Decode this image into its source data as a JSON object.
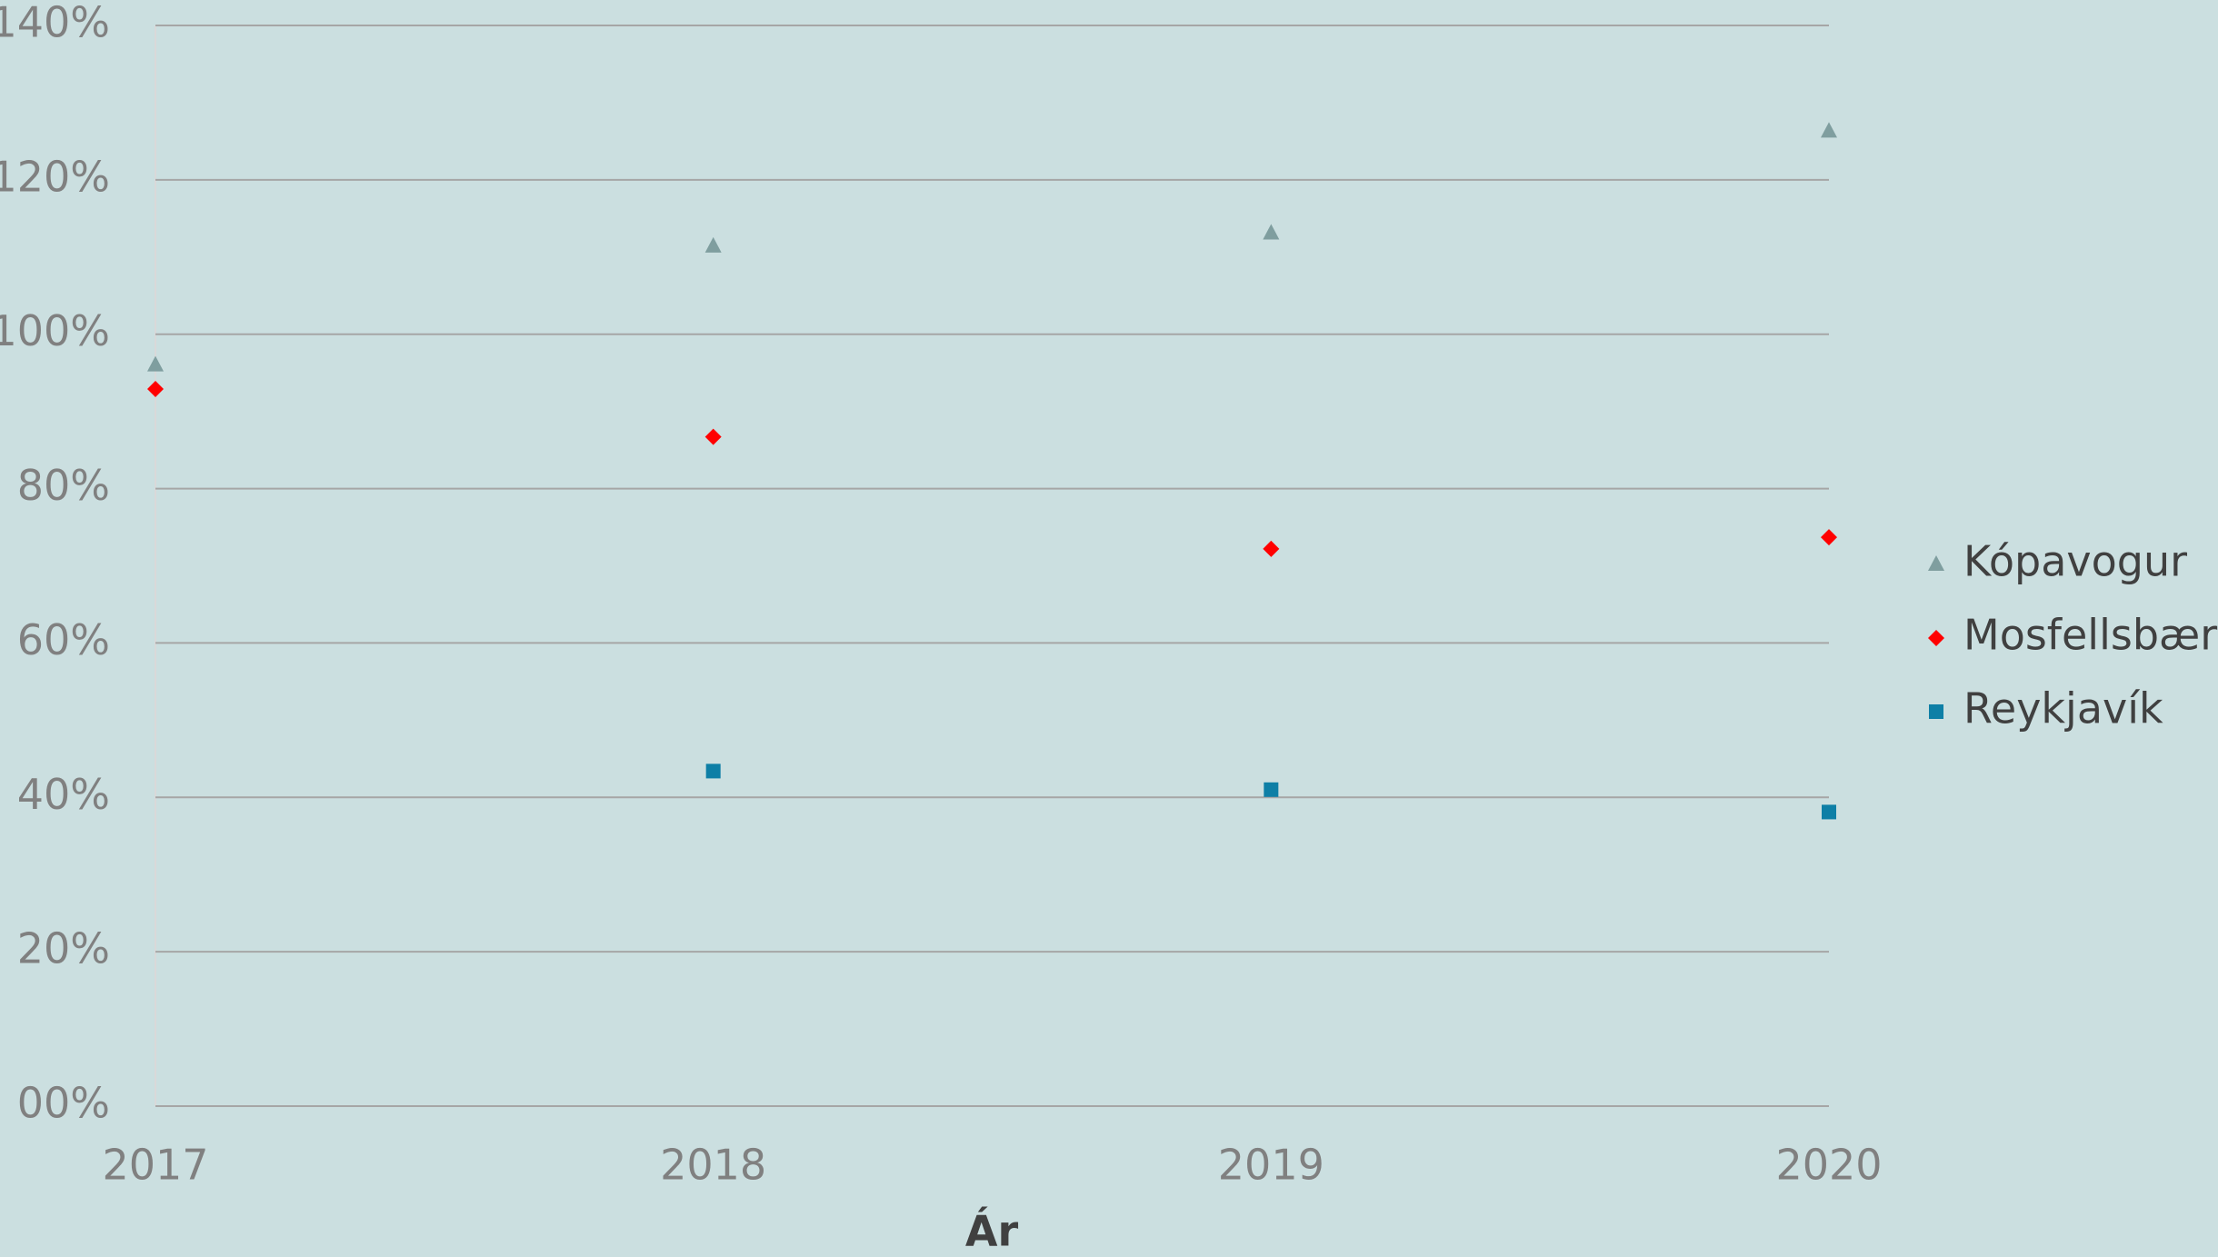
{
  "chart_data": {
    "type": "scatter",
    "x_label": "Ár",
    "x": [
      2017,
      2018,
      2019,
      2020
    ],
    "xlim": [
      2017,
      2020
    ],
    "xticks": [
      2017,
      2018,
      2019,
      2020
    ],
    "ylim": [
      0,
      140
    ],
    "yticks": [
      {
        "value": 0,
        "label": "00%"
      },
      {
        "value": 20,
        "label": "20%"
      },
      {
        "value": 40,
        "label": "40%"
      },
      {
        "value": 60,
        "label": "60%"
      },
      {
        "value": 80,
        "label": "80%"
      },
      {
        "value": 100,
        "label": "100%"
      },
      {
        "value": 120,
        "label": "120%"
      },
      {
        "value": 140,
        "label": "140%"
      }
    ],
    "grid": true,
    "legend": "right",
    "series": [
      {
        "name": "Kópavogur",
        "color": "#7f9e9f",
        "marker": "triangle",
        "values": [
          96.0,
          111.4,
          113.1,
          126.3
        ]
      },
      {
        "name": "Mosfellsbær",
        "color": "#ff0000",
        "marker": "diamond",
        "values": [
          92.9,
          86.7,
          72.2,
          73.7
        ]
      },
      {
        "name": "Reykjavík",
        "color": "#0e7fa6",
        "marker": "square",
        "values": [
          null,
          43.4,
          41.0,
          38.1
        ]
      }
    ]
  }
}
